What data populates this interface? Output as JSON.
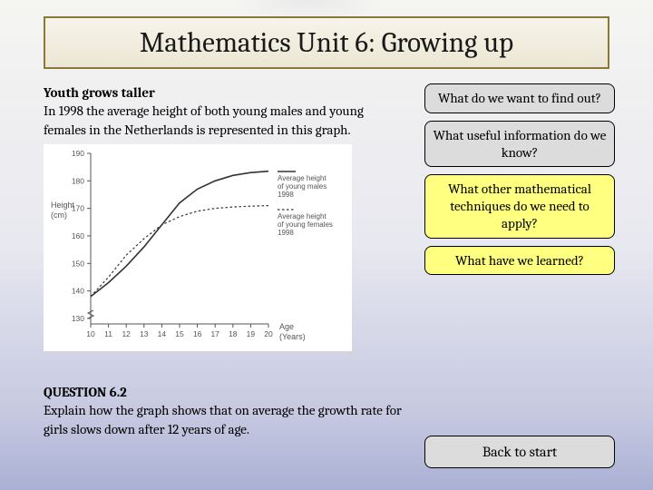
{
  "title": "Mathematics Unit 6: Growing up",
  "intro": {
    "heading": "Youth grows taller",
    "body": "In 1998 the average height of both young males and young females in the Netherlands is represented in this graph."
  },
  "question": {
    "heading": "QUESTION 6.2",
    "body": "Explain how the graph shows that on average the growth rate for girls slows down after 12 years of age."
  },
  "cards": [
    {
      "text": "What do we want to find out?",
      "style": "gray",
      "interactable": true
    },
    {
      "text": "What useful information do we know?",
      "style": "gray",
      "interactable": true
    },
    {
      "text": "What other mathematical techniques do we need to apply?",
      "style": "yellow",
      "interactable": true
    },
    {
      "text": "What have we learned?",
      "style": "yellow",
      "interactable": true
    }
  ],
  "back": "Back to start",
  "chart": {
    "type": "line",
    "y_label": "Height\n(cm)",
    "x_label": "Age\n(Years)",
    "x_ticks": [
      10,
      11,
      12,
      13,
      14,
      15,
      16,
      17,
      18,
      19,
      20
    ],
    "y_ticks": [
      130,
      140,
      150,
      160,
      170,
      180,
      190
    ],
    "xlim": [
      10,
      20
    ],
    "ylim": [
      128,
      190
    ],
    "background_color": "#ffffff",
    "axis_color": "#555555",
    "grid_color": "#cccccc",
    "tick_fontsize": 8.5,
    "label_fontsize": 9,
    "legend_fontsize": 8,
    "legend_pos": "right",
    "y_break": true,
    "series": [
      {
        "name": "Average height of young males 1998",
        "color": "#333333",
        "style": "solid",
        "width": 1.6,
        "points": [
          [
            10,
            138
          ],
          [
            11,
            143
          ],
          [
            12,
            149
          ],
          [
            13,
            156
          ],
          [
            14,
            164
          ],
          [
            15,
            172
          ],
          [
            16,
            177
          ],
          [
            17,
            180
          ],
          [
            18,
            182
          ],
          [
            19,
            183
          ],
          [
            20,
            183.5
          ]
        ]
      },
      {
        "name": "Average height of young females 1998",
        "color": "#333333",
        "style": "dash",
        "width": 1.2,
        "points": [
          [
            10,
            138
          ],
          [
            11,
            145
          ],
          [
            12,
            153
          ],
          [
            13,
            159
          ],
          [
            14,
            164
          ],
          [
            15,
            167
          ],
          [
            16,
            169
          ],
          [
            17,
            170
          ],
          [
            18,
            170.5
          ],
          [
            19,
            170.8
          ],
          [
            20,
            171
          ]
        ]
      }
    ]
  }
}
